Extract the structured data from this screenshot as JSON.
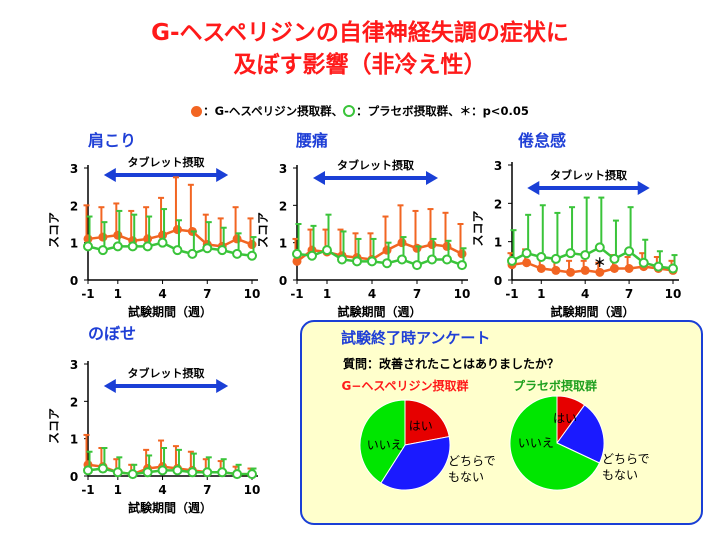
{
  "title": {
    "line1": "G-ヘスペリジンの自律神経失調の症状に",
    "line2": "及ぼす影響（非冷え性）"
  },
  "legend": {
    "ghes_label": "：G-ヘスペリジン摂取群、",
    "placebo_label": "：プラセボ摂取群、",
    "sig_label": "＊：p<0.05"
  },
  "colors": {
    "ghes": "#f26522",
    "placebo": "#3ac43a",
    "title": "#ff1a1a",
    "panel_title": "#1f3fd6",
    "arrow": "#1a3fd6",
    "pie_yes": "#e60000",
    "pie_neutral": "#1a1aff",
    "pie_no": "#00e600"
  },
  "chart_data": [
    {
      "type": "line",
      "title": "肩こり",
      "xlabel": "試験期間（週）",
      "ylabel": "スコア",
      "xlim": [
        -1,
        10
      ],
      "ylim": [
        0,
        3
      ],
      "xticks": [
        -1,
        1,
        4,
        7,
        10
      ],
      "yticks": [
        0,
        1,
        2,
        3
      ],
      "period_label": "タブレット摂取",
      "period": [
        1,
        8
      ],
      "series": [
        {
          "x": [
            -1,
            0,
            1,
            2,
            3,
            4,
            5,
            6,
            7,
            8,
            9,
            10
          ],
          "values": [
            1.1,
            1.15,
            1.2,
            1.05,
            1.1,
            1.2,
            1.35,
            1.3,
            0.95,
            0.9,
            1.1,
            0.95
          ],
          "err": [
            0.9,
            0.8,
            0.85,
            0.8,
            0.85,
            1.0,
            1.4,
            1.25,
            0.8,
            0.75,
            0.85,
            0.7
          ]
        },
        {
          "x": [
            -1,
            0,
            1,
            2,
            3,
            4,
            5,
            6,
            7,
            8,
            9,
            10
          ],
          "values": [
            0.9,
            0.8,
            0.9,
            0.9,
            0.9,
            1.0,
            0.8,
            0.7,
            0.85,
            0.8,
            0.7,
            0.65
          ],
          "err": [
            0.8,
            0.75,
            0.95,
            0.85,
            0.8,
            0.9,
            0.8,
            0.6,
            0.7,
            0.6,
            0.55,
            0.5
          ]
        }
      ],
      "sig": []
    },
    {
      "type": "line",
      "title": "腰痛",
      "xlabel": "試験期間（週）",
      "ylabel": "スコア",
      "xlim": [
        -1,
        10
      ],
      "ylim": [
        0,
        3
      ],
      "xticks": [
        -1,
        1,
        4,
        7,
        10
      ],
      "yticks": [
        0,
        1,
        2,
        3
      ],
      "period_label": "タブレット摂取",
      "period": [
        1,
        8
      ],
      "series": [
        {
          "x": [
            -1,
            0,
            1,
            2,
            3,
            4,
            5,
            6,
            7,
            8,
            9,
            10
          ],
          "values": [
            0.5,
            0.8,
            0.75,
            0.65,
            0.6,
            0.55,
            0.8,
            1.0,
            0.85,
            0.95,
            0.9,
            0.7
          ],
          "err": [
            0.6,
            0.55,
            0.6,
            0.7,
            0.65,
            0.7,
            0.9,
            1.0,
            1.0,
            0.95,
            0.9,
            0.8
          ]
        },
        {
          "x": [
            -1,
            0,
            1,
            2,
            3,
            4,
            5,
            6,
            7,
            8,
            9,
            10
          ],
          "values": [
            0.7,
            0.65,
            0.8,
            0.55,
            0.5,
            0.5,
            0.45,
            0.55,
            0.4,
            0.55,
            0.55,
            0.4
          ],
          "err": [
            0.8,
            0.8,
            0.95,
            0.75,
            0.6,
            0.6,
            0.55,
            0.6,
            0.5,
            0.55,
            0.5,
            0.45
          ]
        }
      ],
      "sig": []
    },
    {
      "type": "line",
      "title": "倦怠感",
      "xlabel": "試験期間（週）",
      "ylabel": "スコア",
      "xlim": [
        -1,
        10
      ],
      "ylim": [
        0,
        3
      ],
      "xticks": [
        -1,
        1,
        4,
        7,
        10
      ],
      "yticks": [
        0,
        1,
        2,
        3
      ],
      "period_label": "タブレット摂取",
      "period": [
        1,
        8
      ],
      "series": [
        {
          "x": [
            -1,
            0,
            1,
            2,
            3,
            4,
            5,
            6,
            7,
            8,
            9,
            10
          ],
          "values": [
            0.4,
            0.45,
            0.3,
            0.25,
            0.2,
            0.25,
            0.2,
            0.3,
            0.3,
            0.35,
            0.3,
            0.25
          ],
          "err": [
            0.3,
            0.35,
            0.3,
            0.25,
            0.3,
            0.25,
            0.25,
            0.35,
            0.3,
            0.35,
            0.3,
            0.25
          ]
        },
        {
          "x": [
            -1,
            0,
            1,
            2,
            3,
            4,
            5,
            6,
            7,
            8,
            9,
            10
          ],
          "values": [
            0.5,
            0.7,
            0.6,
            0.55,
            0.7,
            0.65,
            0.85,
            0.55,
            0.75,
            0.45,
            0.35,
            0.3
          ],
          "err": [
            0.8,
            1.0,
            1.35,
            1.2,
            1.2,
            1.5,
            1.3,
            1.0,
            1.15,
            0.6,
            0.4,
            0.35
          ]
        }
      ],
      "sig": [
        5
      ]
    },
    {
      "type": "line",
      "title": "のぼせ",
      "xlabel": "試験期間（週）",
      "ylabel": "スコア",
      "xlim": [
        -1,
        10
      ],
      "ylim": [
        0,
        3
      ],
      "xticks": [
        -1,
        1,
        4,
        7,
        10
      ],
      "yticks": [
        0,
        1,
        2,
        3
      ],
      "period_label": "タブレット摂取",
      "period": [
        1,
        8
      ],
      "series": [
        {
          "x": [
            -1,
            0,
            1,
            2,
            3,
            4,
            5,
            6,
            7,
            8,
            9,
            10
          ],
          "values": [
            0.3,
            0.25,
            0.1,
            0.05,
            0.2,
            0.25,
            0.2,
            0.15,
            0.1,
            0.1,
            0.05,
            0.05
          ],
          "err": [
            0.8,
            0.5,
            0.35,
            0.25,
            0.5,
            0.7,
            0.6,
            0.5,
            0.35,
            0.3,
            0.2,
            0.15
          ]
        },
        {
          "x": [
            -1,
            0,
            1,
            2,
            3,
            4,
            5,
            6,
            7,
            8,
            9,
            10
          ],
          "values": [
            0.15,
            0.2,
            0.1,
            0.05,
            0.1,
            0.15,
            0.15,
            0.1,
            0.1,
            0.1,
            0.05,
            0.05
          ],
          "err": [
            0.5,
            0.55,
            0.4,
            0.25,
            0.45,
            0.6,
            0.55,
            0.5,
            0.4,
            0.35,
            0.25,
            0.15
          ]
        }
      ],
      "sig": []
    },
    {
      "type": "pie",
      "title": "試験終了時アンケート",
      "question": "質問：改善されたことはありましたか？",
      "pies": [
        {
          "name": "G−ヘスペリジン摂取群",
          "labels": [
            "はい",
            "どちらでもない",
            "いいえ"
          ],
          "values": [
            22,
            37,
            41
          ]
        },
        {
          "name": "プラセボ摂取群",
          "labels": [
            "はい",
            "どちらでもない",
            "いいえ"
          ],
          "values": [
            10,
            22,
            68
          ]
        }
      ]
    }
  ]
}
